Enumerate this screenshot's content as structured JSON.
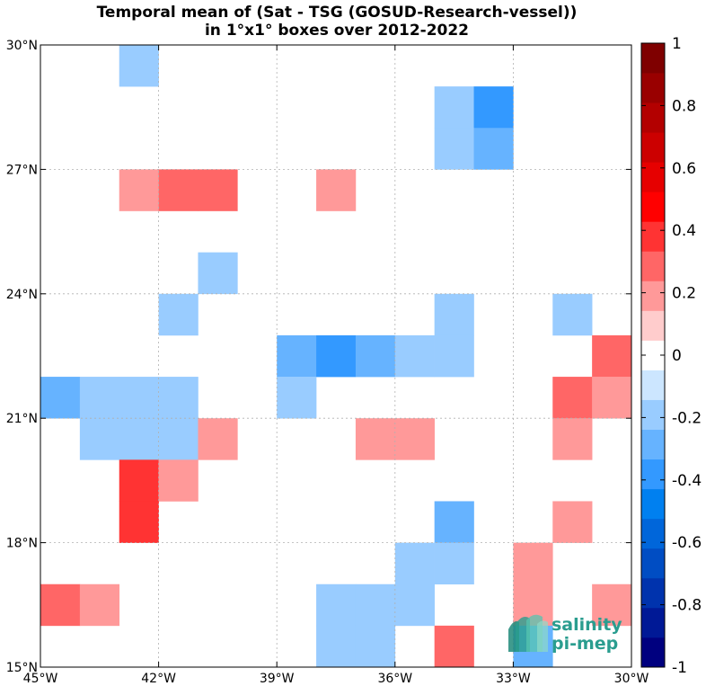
{
  "chart_data": {
    "type": "heatmap",
    "title": [
      "Temporal mean of (Sat - TSG (GOSUD-Research-vessel))",
      "in 1°x1° boxes over 2012-2022"
    ],
    "xlim": [
      -45,
      -30
    ],
    "ylim": [
      15,
      30
    ],
    "xticks": [
      -45,
      -42,
      -39,
      -36,
      -33,
      -30
    ],
    "xtick_labels": [
      "45°W",
      "42°W",
      "39°W",
      "36°W",
      "33°W",
      "30°W"
    ],
    "yticks": [
      15,
      18,
      21,
      24,
      27,
      30
    ],
    "ytick_labels": [
      "15°N",
      "18°N",
      "21°N",
      "24°N",
      "27°N",
      "30°N"
    ],
    "grid": true,
    "colorbar": {
      "range": [
        -1,
        1
      ],
      "step": 0.1,
      "ticks": [
        -1,
        -0.8,
        -0.6,
        -0.4,
        -0.2,
        0,
        0.2,
        0.4,
        0.6,
        0.8,
        1
      ],
      "tick_labels": [
        "-1",
        "-0.8",
        "-0.6",
        "-0.4",
        "-0.2",
        "0",
        "0.2",
        "0.4",
        "0.6",
        "0.8",
        "1"
      ],
      "colors": [
        "#00007f",
        "#001996",
        "#0033ad",
        "#004dc3",
        "#0066da",
        "#0080f0",
        "#3399ff",
        "#66b3ff",
        "#99ccff",
        "#cce6ff",
        "#ffffff",
        "#ffcccc",
        "#ff9999",
        "#ff6666",
        "#ff3333",
        "#ff0000",
        "#e60000",
        "#cc0000",
        "#b30000",
        "#990000",
        "#7f0000"
      ]
    },
    "cells": [
      {
        "lon": -43,
        "lat": 29,
        "value": -0.15
      },
      {
        "lon": -35,
        "lat": 28,
        "value": -0.15
      },
      {
        "lon": -34,
        "lat": 28,
        "value": -0.35
      },
      {
        "lon": -35,
        "lat": 27,
        "value": -0.15
      },
      {
        "lon": -34,
        "lat": 27,
        "value": -0.25
      },
      {
        "lon": -43,
        "lat": 26,
        "value": 0.15
      },
      {
        "lon": -42,
        "lat": 26,
        "value": 0.25
      },
      {
        "lon": -41,
        "lat": 26,
        "value": 0.25
      },
      {
        "lon": -38,
        "lat": 26,
        "value": 0.15
      },
      {
        "lon": -41,
        "lat": 24,
        "value": -0.15
      },
      {
        "lon": -42,
        "lat": 23,
        "value": -0.15
      },
      {
        "lon": -35,
        "lat": 23,
        "value": -0.15
      },
      {
        "lon": -32,
        "lat": 23,
        "value": -0.15
      },
      {
        "lon": -39,
        "lat": 22,
        "value": -0.25
      },
      {
        "lon": -38,
        "lat": 22,
        "value": -0.35
      },
      {
        "lon": -37,
        "lat": 22,
        "value": -0.25
      },
      {
        "lon": -36,
        "lat": 22,
        "value": -0.15
      },
      {
        "lon": -35,
        "lat": 22,
        "value": -0.15
      },
      {
        "lon": -31,
        "lat": 22,
        "value": 0.25
      },
      {
        "lon": -45,
        "lat": 21,
        "value": -0.3
      },
      {
        "lon": -44,
        "lat": 21,
        "value": -0.15
      },
      {
        "lon": -43,
        "lat": 21,
        "value": -0.15
      },
      {
        "lon": -42,
        "lat": 21,
        "value": -0.15
      },
      {
        "lon": -39,
        "lat": 21,
        "value": -0.15
      },
      {
        "lon": -32,
        "lat": 21,
        "value": 0.25
      },
      {
        "lon": -31,
        "lat": 21,
        "value": 0.15
      },
      {
        "lon": -44,
        "lat": 20,
        "value": -0.15
      },
      {
        "lon": -43,
        "lat": 20,
        "value": -0.15
      },
      {
        "lon": -42,
        "lat": 20,
        "value": -0.15
      },
      {
        "lon": -41,
        "lat": 20,
        "value": 0.15
      },
      {
        "lon": -37,
        "lat": 20,
        "value": 0.15
      },
      {
        "lon": -36,
        "lat": 20,
        "value": 0.15
      },
      {
        "lon": -32,
        "lat": 20,
        "value": 0.15
      },
      {
        "lon": -43,
        "lat": 19,
        "value": 0.35
      },
      {
        "lon": -42,
        "lat": 19,
        "value": 0.15
      },
      {
        "lon": -43,
        "lat": 18,
        "value": 0.35
      },
      {
        "lon": -35,
        "lat": 18,
        "value": -0.25
      },
      {
        "lon": -32,
        "lat": 18,
        "value": 0.15
      },
      {
        "lon": -36,
        "lat": 17,
        "value": -0.15
      },
      {
        "lon": -35,
        "lat": 17,
        "value": -0.15
      },
      {
        "lon": -33,
        "lat": 17,
        "value": 0.15
      },
      {
        "lon": -36,
        "lat": 16,
        "value": -0.15
      },
      {
        "lon": -45,
        "lat": 16,
        "value": 0.25
      },
      {
        "lon": -44,
        "lat": 16,
        "value": 0.15
      },
      {
        "lon": -38,
        "lat": 16,
        "value": -0.15
      },
      {
        "lon": -37,
        "lat": 16,
        "value": -0.15
      },
      {
        "lon": -33,
        "lat": 16,
        "value": 0.15
      },
      {
        "lon": -31,
        "lat": 16,
        "value": 0.15
      },
      {
        "lon": -38,
        "lat": 15,
        "value": -0.15
      },
      {
        "lon": -37,
        "lat": 15,
        "value": -0.15
      },
      {
        "lon": -35,
        "lat": 15,
        "value": 0.25
      },
      {
        "lon": -33,
        "lat": 15,
        "value": -0.25
      }
    ]
  },
  "logo": {
    "line1": "salinity",
    "line2": "pi-mep",
    "color": "#2a9d8f"
  }
}
